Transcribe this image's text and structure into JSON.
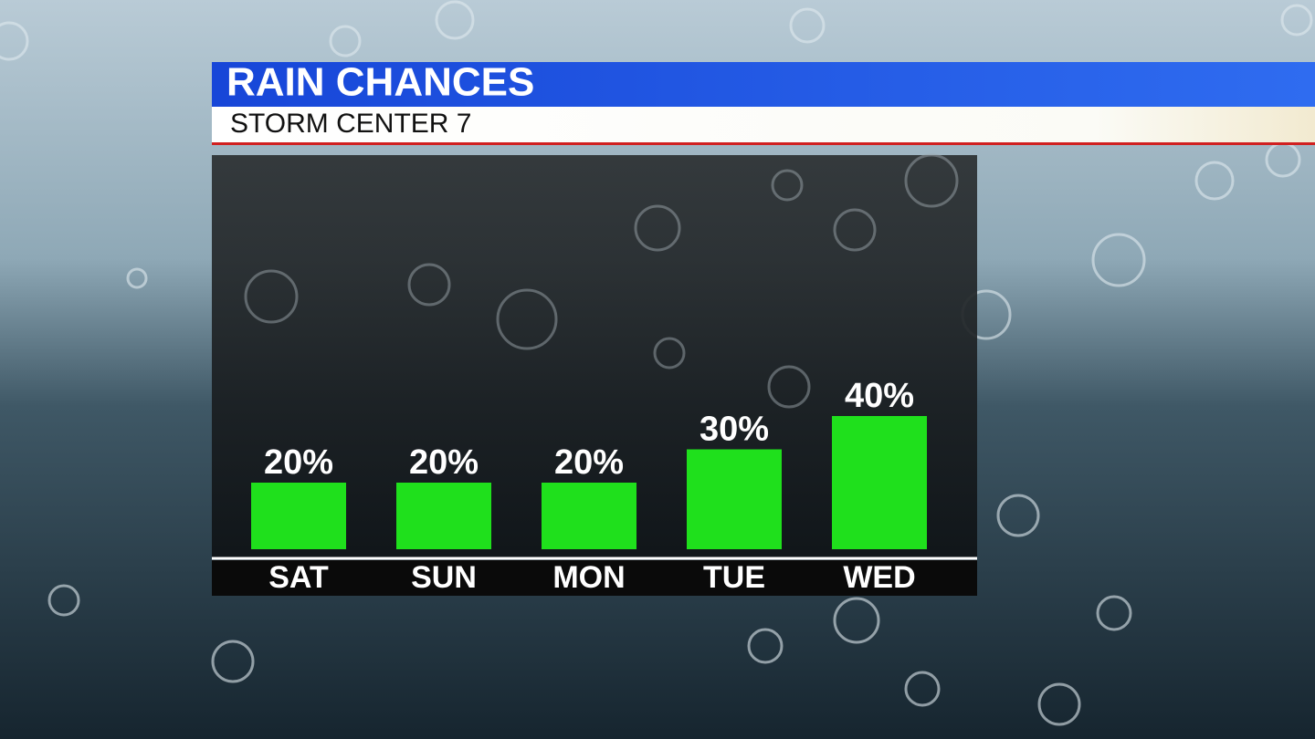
{
  "chart_data": {
    "type": "bar",
    "title": "RAIN CHANCES",
    "subtitle": "STORM CENTER 7",
    "categories": [
      "SAT",
      "SUN",
      "MON",
      "TUE",
      "WED"
    ],
    "values": [
      20,
      20,
      20,
      30,
      40
    ],
    "value_labels": [
      "20%",
      "20%",
      "20%",
      "30%",
      "40%"
    ],
    "color": "#1fe01c"
  }
}
